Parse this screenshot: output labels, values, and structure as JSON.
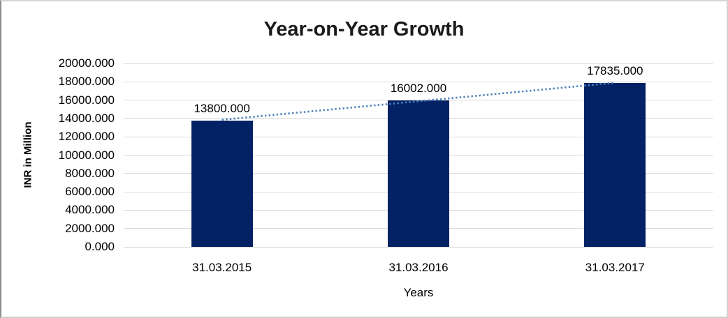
{
  "frame": {
    "background": "#ffffff",
    "border_color": "#d2d2d2"
  },
  "chart_data": {
    "type": "bar",
    "title": "Year-on-Year Growth",
    "xlabel": "Years",
    "ylabel": "INR in Million",
    "categories": [
      "31.03.2015",
      "31.03.2016",
      "31.03.2017"
    ],
    "values": [
      13800.0,
      16002.0,
      17835.0
    ],
    "data_labels": [
      "13800.000",
      "16002.000",
      "17835.000"
    ],
    "ylim": [
      0,
      20000
    ],
    "ytick_step": 2000,
    "yticks": [
      "20000.000",
      "18000.000",
      "16000.000",
      "14000.000",
      "12000.000",
      "10000.000",
      "8000.000",
      "6000.000",
      "4000.000",
      "2000.000",
      "0.000"
    ],
    "grid": true,
    "gridline_color": "#d9d9d9",
    "legend_position": "none",
    "bar_color": "#032265",
    "title_color": "#1a1a1a",
    "text_color": "#000000",
    "trendline": {
      "type": "linear",
      "style": "dotted",
      "color": "#4f81bd"
    }
  }
}
